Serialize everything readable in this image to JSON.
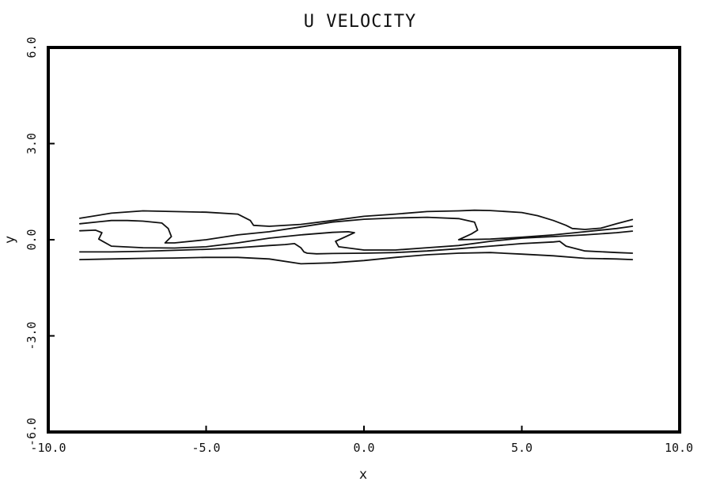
{
  "chart_data": {
    "type": "line",
    "title": "U VELOCITY",
    "xlabel": "x",
    "ylabel": "y",
    "xlim": [
      -10.0,
      10.0
    ],
    "ylim": [
      -6.0,
      6.0
    ],
    "xticks": [
      "-10.0",
      "-5.0",
      "0.0",
      "5.0",
      "10.0"
    ],
    "yticks": [
      "6.0",
      "3.0",
      "0.0",
      "-3.0",
      "-6.0"
    ],
    "grid": false,
    "series": [
      {
        "x": [
          -9.0,
          -8.0,
          -7.0,
          -6.0,
          -5.0,
          -4.0,
          -3.6,
          -3.5,
          -3.0,
          -2.0,
          -1.0,
          0.0,
          1.0,
          2.0,
          3.0,
          3.5,
          4.0,
          5.0,
          5.5,
          6.0,
          6.4,
          6.6,
          7.0,
          7.5,
          8.0,
          8.5
        ],
        "y": [
          0.67,
          0.83,
          0.9,
          0.88,
          0.86,
          0.8,
          0.6,
          0.45,
          0.42,
          0.48,
          0.6,
          0.73,
          0.8,
          0.88,
          0.9,
          0.92,
          0.91,
          0.85,
          0.75,
          0.6,
          0.45,
          0.35,
          0.32,
          0.36,
          0.5,
          0.63
        ]
      },
      {
        "x": [
          -9.0,
          -8.0,
          -7.5,
          -7.0,
          -6.4,
          -6.2,
          -6.1,
          -6.3,
          -6.0,
          -5.0,
          -4.0,
          -3.0,
          -2.0,
          -1.0,
          0.0,
          1.0,
          2.0,
          3.0,
          3.5,
          3.6,
          3.4,
          3.0,
          4.0,
          5.0,
          6.0,
          7.0,
          8.0,
          8.5
        ],
        "y": [
          0.5,
          0.6,
          0.6,
          0.58,
          0.52,
          0.35,
          0.1,
          -0.1,
          -0.1,
          0.0,
          0.15,
          0.25,
          0.4,
          0.55,
          0.64,
          0.68,
          0.7,
          0.66,
          0.55,
          0.3,
          0.18,
          0.0,
          0.02,
          0.08,
          0.15,
          0.25,
          0.35,
          0.42
        ]
      },
      {
        "x": [
          -9.0,
          -8.5,
          -8.3,
          -8.4,
          -8.0,
          -7.0,
          -6.0,
          -5.0,
          -4.0,
          -3.0,
          -2.0,
          -1.0,
          -0.5,
          -0.3,
          -0.9,
          -0.8,
          0.0,
          1.0,
          2.0,
          3.0,
          4.0,
          5.0,
          6.0,
          7.0,
          8.0,
          8.5
        ],
        "y": [
          0.28,
          0.3,
          0.22,
          0.02,
          -0.2,
          -0.25,
          -0.26,
          -0.22,
          -0.1,
          0.05,
          0.15,
          0.23,
          0.25,
          0.22,
          -0.05,
          -0.22,
          -0.32,
          -0.32,
          -0.25,
          -0.18,
          -0.05,
          0.05,
          0.1,
          0.15,
          0.22,
          0.27
        ]
      },
      {
        "x": [
          -9.0,
          -8.0,
          -7.0,
          -6.0,
          -5.0,
          -4.0,
          -3.0,
          -2.5,
          -2.2,
          -2.0,
          -1.9,
          -1.8,
          -1.5,
          -1.0,
          0.0,
          1.0,
          2.0,
          3.0,
          4.0,
          5.0,
          6.0,
          6.2,
          6.4,
          7.0,
          8.0,
          8.5
        ],
        "y": [
          -0.38,
          -0.38,
          -0.36,
          -0.33,
          -0.3,
          -0.25,
          -0.18,
          -0.15,
          -0.12,
          -0.25,
          -0.38,
          -0.42,
          -0.44,
          -0.43,
          -0.42,
          -0.4,
          -0.35,
          -0.28,
          -0.2,
          -0.12,
          -0.07,
          -0.05,
          -0.2,
          -0.35,
          -0.4,
          -0.42
        ]
      },
      {
        "x": [
          -9.0,
          -8.0,
          -7.0,
          -6.0,
          -5.0,
          -4.0,
          -3.0,
          -2.0,
          -1.0,
          0.0,
          1.0,
          2.0,
          3.0,
          4.0,
          5.0,
          6.0,
          7.0,
          8.0,
          8.5
        ],
        "y": [
          -0.62,
          -0.6,
          -0.58,
          -0.57,
          -0.55,
          -0.55,
          -0.6,
          -0.75,
          -0.72,
          -0.65,
          -0.55,
          -0.47,
          -0.42,
          -0.4,
          -0.45,
          -0.5,
          -0.58,
          -0.6,
          -0.62
        ]
      }
    ]
  }
}
